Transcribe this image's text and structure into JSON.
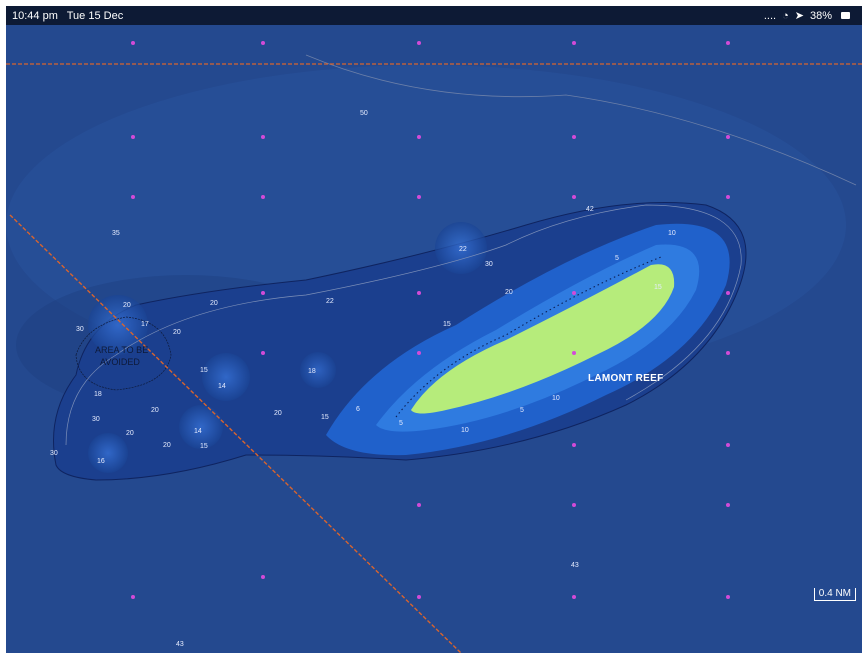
{
  "status_bar": {
    "time": "10:44 pm",
    "date": "Tue 15 Dec",
    "signal": "....",
    "battery": "38%"
  },
  "map": {
    "feature_label": "LAMONT REEF",
    "restricted_area_label_line1": "AREA TO BE",
    "restricted_area_label_line2": "AVOIDED",
    "scale_label": "0.4 NM",
    "colors": {
      "deep_water": "#24498f",
      "shallow_water": "#1f5ec9",
      "reef": "#b6ec7b",
      "route": "#d8642e",
      "marker": "#d24bd8"
    },
    "soundings": [
      {
        "id": "s50",
        "value": "50"
      },
      {
        "id": "s42",
        "value": "42"
      },
      {
        "id": "s35",
        "value": "35"
      },
      {
        "id": "s22a",
        "value": "22"
      },
      {
        "id": "s30a",
        "value": "30"
      },
      {
        "id": "s20a",
        "value": "20"
      },
      {
        "id": "s20b",
        "value": "20"
      },
      {
        "id": "s20c",
        "value": "20"
      },
      {
        "id": "s22b",
        "value": "22"
      },
      {
        "id": "s30b",
        "value": "30"
      },
      {
        "id": "s17",
        "value": "17"
      },
      {
        "id": "s20d",
        "value": "20"
      },
      {
        "id": "s15a",
        "value": "15"
      },
      {
        "id": "s14a",
        "value": "14"
      },
      {
        "id": "s18a",
        "value": "18"
      },
      {
        "id": "s18b",
        "value": "18"
      },
      {
        "id": "s20e",
        "value": "20"
      },
      {
        "id": "s30c",
        "value": "30"
      },
      {
        "id": "s14b",
        "value": "14"
      },
      {
        "id": "s15b",
        "value": "15"
      },
      {
        "id": "s20f",
        "value": "20"
      },
      {
        "id": "s20g",
        "value": "20"
      },
      {
        "id": "s16",
        "value": "16"
      },
      {
        "id": "s30d",
        "value": "30"
      },
      {
        "id": "s15c",
        "value": "15"
      },
      {
        "id": "s6",
        "value": "6"
      },
      {
        "id": "s5a",
        "value": "5"
      },
      {
        "id": "s10a",
        "value": "10"
      },
      {
        "id": "s5b",
        "value": "5"
      },
      {
        "id": "s10b",
        "value": "10"
      },
      {
        "id": "s15d",
        "value": "15"
      },
      {
        "id": "s10c",
        "value": "10"
      },
      {
        "id": "s5c",
        "value": "5"
      },
      {
        "id": "s15e",
        "value": "15"
      },
      {
        "id": "s20h",
        "value": "20"
      },
      {
        "id": "s43a",
        "value": "43"
      },
      {
        "id": "s43b",
        "value": "43"
      }
    ]
  }
}
